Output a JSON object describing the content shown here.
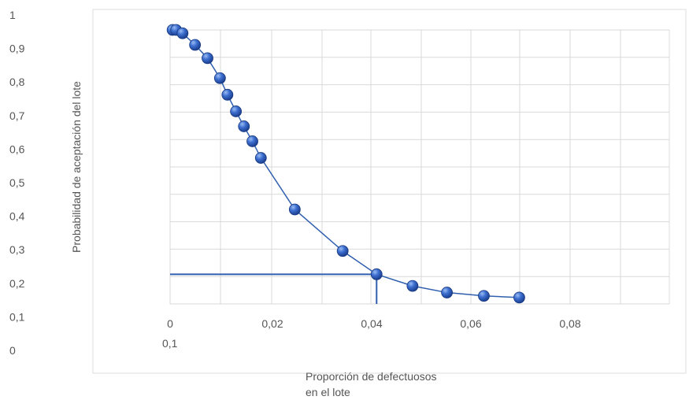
{
  "chart_data": {
    "type": "line",
    "title": "",
    "xlabel_line1": "Proporción  de  defectuosos",
    "xlabel_line2": "en el lote",
    "ylabel": "Probabilidad de aceptación del lote",
    "y_tick_labels": [
      "1",
      "0,9",
      "0,8",
      "0,7",
      "0,6",
      "0,5",
      "0,4",
      "0,3",
      "0,2",
      "0,1",
      "0"
    ],
    "x_tick_labels": [
      "0",
      "0,02",
      "0,04",
      "0,06",
      "0,08"
    ],
    "x_tick_values": [
      0,
      0.02,
      0.04,
      0.06,
      0.08
    ],
    "extra_label": "0,1",
    "grid": true,
    "colors": {
      "series": "#2f5fae",
      "marker": "#2a55b8",
      "reference": "#2f5fae",
      "grid": "#d9d9d9"
    },
    "series": [
      {
        "x": [
          0.0005,
          0.0012,
          0.0025,
          0.005,
          0.0075,
          0.01,
          0.0115,
          0.0132,
          0.0148,
          0.0165,
          0.0182,
          0.025,
          0.0346,
          0.0414,
          0.0486,
          0.0555,
          0.0629,
          0.07
        ],
        "y": [
          0.96,
          0.96,
          0.95,
          0.915,
          0.875,
          0.815,
          0.765,
          0.715,
          0.67,
          0.625,
          0.575,
          0.42,
          0.295,
          0.225,
          0.19,
          0.17,
          0.16,
          0.155
        ]
      }
    ],
    "reference": {
      "x": 0.0414,
      "y": 0.225
    }
  }
}
